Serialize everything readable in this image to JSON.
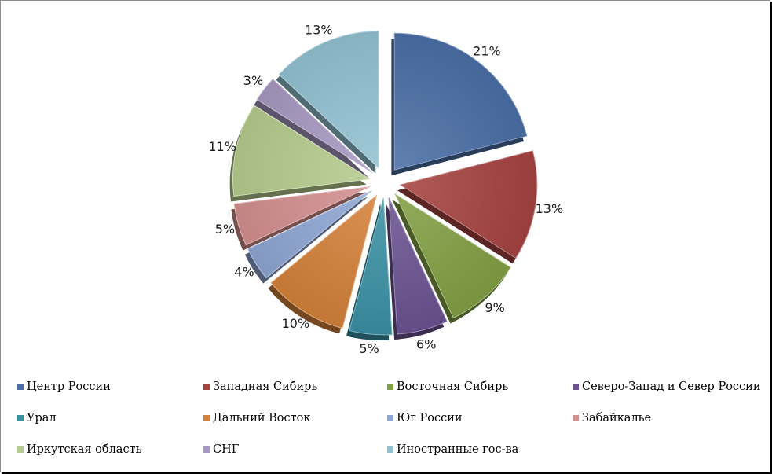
{
  "chart_data": {
    "type": "pie",
    "exploded": true,
    "shading": "3d",
    "legend_position": "bottom",
    "slices": [
      {
        "name": "Центр России",
        "value": 21,
        "label": "21%",
        "color": "#4A6FA5"
      },
      {
        "name": "Западная Сибирь",
        "value": 13,
        "label": "13%",
        "color": "#A54341"
      },
      {
        "name": "Восточная Сибирь",
        "value": 9,
        "label": "9%",
        "color": "#82A045"
      },
      {
        "name": "Северо-Запад и Север России",
        "value": 6,
        "label": "6%",
        "color": "#6B5391"
      },
      {
        "name": "Урал",
        "value": 5,
        "label": "5%",
        "color": "#3B91A4"
      },
      {
        "name": "Дальний Восток",
        "value": 10,
        "label": "10%",
        "color": "#D4813A"
      },
      {
        "name": "Юг России",
        "value": 4,
        "label": "4%",
        "color": "#8FA6D3"
      },
      {
        "name": "Забайкалье",
        "value": 5,
        "label": "5%",
        "color": "#D38F8E"
      },
      {
        "name": "Иркутская область",
        "value": 11,
        "label": "11%",
        "color": "#B6CB8D"
      },
      {
        "name": "СНГ",
        "value": 3,
        "label": "3%",
        "color": "#A899C2"
      },
      {
        "name": "Иностранные гос-ва",
        "value": 13,
        "label": "13%",
        "color": "#93C2D2"
      }
    ]
  }
}
